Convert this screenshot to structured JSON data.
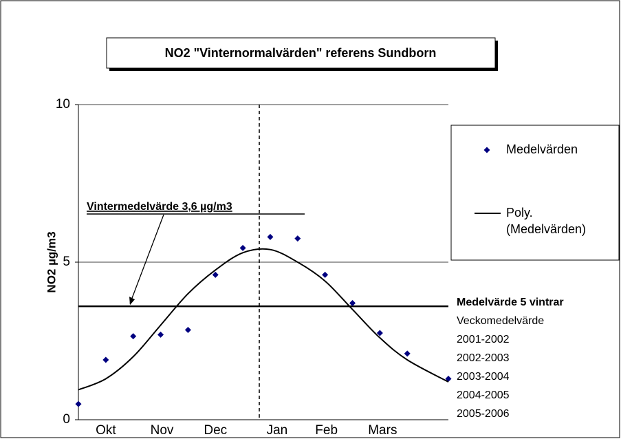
{
  "chart_data": {
    "type": "scatter",
    "title": "NO2 \"Vinternormalvärden\" referens Sundborn",
    "y_label": "NO2 µg/m3",
    "xlim": [
      0,
      27
    ],
    "ylim": [
      0,
      10
    ],
    "yticks": [
      0,
      5,
      10
    ],
    "xticks": [
      {
        "value": 2,
        "label": "Okt"
      },
      {
        "value": 6.1,
        "label": "Nov"
      },
      {
        "value": 10,
        "label": "Dec"
      },
      {
        "value": 14.5,
        "label": "Jan"
      },
      {
        "value": 18.1,
        "label": "Feb"
      },
      {
        "value": 22.2,
        "label": "Mars"
      }
    ],
    "grid": true,
    "series": [
      {
        "name": "Medelvärden",
        "color": "#000080",
        "kind": "points",
        "x": [
          0,
          2,
          4,
          6,
          8,
          10,
          12,
          14,
          16,
          18,
          20,
          22,
          24,
          27
        ],
        "values": [
          0.5,
          1.9,
          2.65,
          2.7,
          2.85,
          4.6,
          5.45,
          5.8,
          5.75,
          4.6,
          3.7,
          2.75,
          2.1,
          1.3
        ]
      },
      {
        "name": "Poly. (Medelvärden)",
        "color": "#000000",
        "kind": "line",
        "x": [
          0,
          2,
          4,
          6,
          8,
          10,
          12,
          14,
          16,
          18,
          20,
          22,
          24,
          27
        ],
        "values": [
          0.95,
          1.3,
          2.0,
          3.0,
          4.0,
          4.75,
          5.3,
          5.4,
          5.0,
          4.4,
          3.5,
          2.6,
          1.9,
          1.2
        ]
      }
    ],
    "mean_line": {
      "label": "Vintermedelvärde 3,6 µg/m3",
      "value": 3.6
    },
    "divider_x": 13.2,
    "notes": [
      "Medelvärde 5 vintrar",
      "Veckomedelvärde",
      "2001-2002",
      "2002-2003",
      "2003-2004",
      "2004-2005",
      "2005-2006"
    ]
  }
}
